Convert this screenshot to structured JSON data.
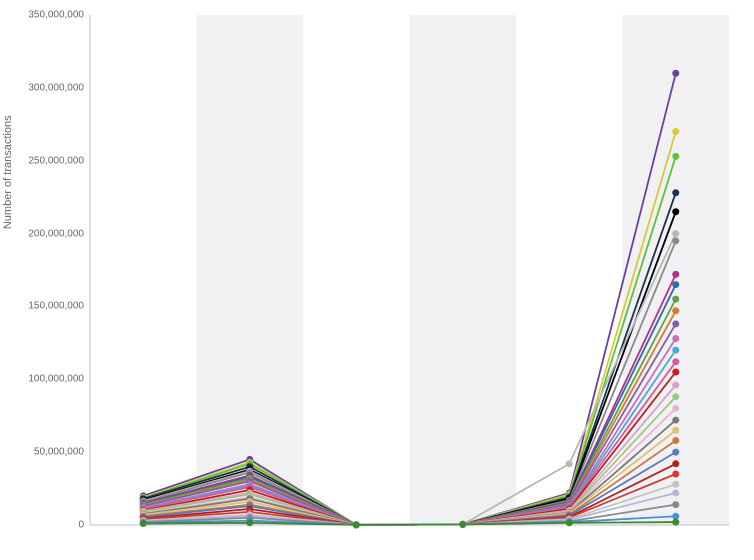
{
  "chart": {
    "type": "line",
    "y_axis_title": "Number of transactions",
    "background_color": "#ffffff",
    "alt_band_color": "#f1f1f3",
    "axis_line_color": "#bfbfbf",
    "marker_radius": 3.5,
    "line_width": 1.8,
    "label_fontsize": 10,
    "label_color": "#666666",
    "title_fontsize": 11,
    "ylim": [
      0,
      350000000
    ],
    "yticks": [
      0,
      50000000,
      100000000,
      150000000,
      200000000,
      250000000,
      300000000,
      350000000
    ],
    "ytick_labels": [
      "0",
      "50,000,000",
      "100,000,000",
      "150,000,000",
      "200,000,000",
      "250,000,000",
      "300,000,000",
      "350,000,000"
    ],
    "x_count": 6,
    "series": [
      {
        "color": "#6b3fa0",
        "values": [
          20000000,
          45000000,
          100000,
          400000,
          22000000,
          310000000
        ]
      },
      {
        "color": "#d8c93a",
        "values": [
          19000000,
          43000000,
          100000,
          400000,
          21000000,
          270000000
        ]
      },
      {
        "color": "#5cc23a",
        "values": [
          18500000,
          42000000,
          100000,
          400000,
          20000000,
          253000000
        ]
      },
      {
        "color": "#1e3050",
        "values": [
          18000000,
          40000000,
          100000,
          400000,
          19000000,
          228000000
        ]
      },
      {
        "color": "#000000",
        "values": [
          17000000,
          38000000,
          100000,
          400000,
          18000000,
          215000000
        ]
      },
      {
        "color": "#b8b8b8",
        "values": [
          16500000,
          37000000,
          100000,
          400000,
          42000000,
          200000000
        ]
      },
      {
        "color": "#8a8a8a",
        "values": [
          16000000,
          36000000,
          100000,
          400000,
          17000000,
          195000000
        ]
      },
      {
        "color": "#b52d87",
        "values": [
          15000000,
          34000000,
          100000,
          400000,
          16000000,
          172000000
        ]
      },
      {
        "color": "#2e69b0",
        "values": [
          14500000,
          33000000,
          100000,
          400000,
          15500000,
          165000000
        ]
      },
      {
        "color": "#5fa147",
        "values": [
          14000000,
          32000000,
          100000,
          400000,
          15000000,
          155000000
        ]
      },
      {
        "color": "#d97b2e",
        "values": [
          13500000,
          31000000,
          100000,
          400000,
          14500000,
          147000000
        ]
      },
      {
        "color": "#8060a8",
        "values": [
          13000000,
          30000000,
          100000,
          400000,
          14000000,
          138000000
        ]
      },
      {
        "color": "#c56fb5",
        "values": [
          12000000,
          28000000,
          100000,
          400000,
          13000000,
          128000000
        ]
      },
      {
        "color": "#4aa8d8",
        "values": [
          11500000,
          27000000,
          100000,
          400000,
          12500000,
          120000000
        ]
      },
      {
        "color": "#e0569e",
        "values": [
          11000000,
          26000000,
          100000,
          400000,
          12000000,
          112000000
        ]
      },
      {
        "color": "#c41e1e",
        "values": [
          10000000,
          24000000,
          100000,
          400000,
          11000000,
          105000000
        ]
      },
      {
        "color": "#d4a5c9",
        "values": [
          9500000,
          22000000,
          100000,
          400000,
          10000000,
          96000000
        ]
      },
      {
        "color": "#9ec97a",
        "values": [
          9000000,
          21000000,
          100000,
          400000,
          9500000,
          88000000
        ]
      },
      {
        "color": "#e8b4d4",
        "values": [
          8000000,
          19000000,
          100000,
          400000,
          9000000,
          80000000
        ]
      },
      {
        "color": "#7a7a7a",
        "values": [
          7500000,
          18000000,
          100000,
          400000,
          8500000,
          72000000
        ]
      },
      {
        "color": "#d9c17a",
        "values": [
          7000000,
          16000000,
          100000,
          400000,
          8000000,
          65000000
        ]
      },
      {
        "color": "#c97a42",
        "values": [
          6000000,
          14000000,
          100000,
          400000,
          7000000,
          58000000
        ]
      },
      {
        "color": "#5a7ab8",
        "values": [
          5500000,
          13000000,
          100000,
          400000,
          6500000,
          50000000
        ]
      },
      {
        "color": "#b02323",
        "values": [
          4500000,
          11000000,
          100000,
          400000,
          5500000,
          42000000
        ]
      },
      {
        "color": "#d43a3a",
        "values": [
          4000000,
          9000000,
          100000,
          400000,
          5000000,
          35000000
        ]
      },
      {
        "color": "#c4c4c4",
        "values": [
          3000000,
          7000000,
          100000,
          400000,
          4000000,
          28000000
        ]
      },
      {
        "color": "#aeb8d4",
        "values": [
          2500000,
          6000000,
          100000,
          400000,
          3500000,
          22000000
        ]
      },
      {
        "color": "#8a8a8a",
        "values": [
          2000000,
          5000000,
          100000,
          400000,
          2500000,
          14000000
        ]
      },
      {
        "color": "#4a90d9",
        "values": [
          1500000,
          3000000,
          100000,
          400000,
          2000000,
          6000000
        ]
      },
      {
        "color": "#3a8a2e",
        "values": [
          1000000,
          1500000,
          100000,
          400000,
          1500000,
          2000000
        ]
      }
    ]
  }
}
